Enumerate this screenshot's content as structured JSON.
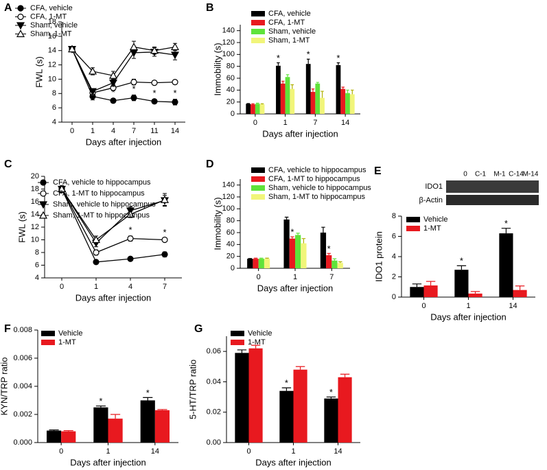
{
  "chart_data": [
    {
      "type": "line",
      "panel": "A",
      "ylabel": "FWL (s)",
      "xlabel": "Days after injection",
      "categories": [
        "0",
        "1",
        "4",
        "7",
        "11",
        "14"
      ],
      "ylim": [
        4,
        18
      ],
      "yticks": [
        4,
        6,
        8,
        10,
        12,
        14,
        16,
        18
      ],
      "legend": "upper left",
      "series": [
        {
          "name": "CFA, vehicle",
          "color": "#000000",
          "marker": "filled-circle",
          "values": [
            14.2,
            7.6,
            7.0,
            7.4,
            6.9,
            6.8
          ],
          "errors": [
            0.2,
            0.5,
            0.3,
            0.4,
            0.3,
            0.4
          ],
          "significance": [
            null,
            null,
            "*",
            "*",
            "*",
            "*"
          ]
        },
        {
          "name": "CFA, 1-MT",
          "color": "#000000",
          "marker": "open-circle",
          "values": [
            14.2,
            8.1,
            8.8,
            9.6,
            9.5,
            9.6
          ],
          "errors": [
            0.2,
            0.4,
            0.4,
            0.4,
            0.3,
            0.3
          ],
          "significance": null
        },
        {
          "name": "Sham, vehicle",
          "color": "#000000",
          "marker": "filled-triangle-down",
          "values": [
            14.2,
            8.3,
            9.5,
            13.7,
            13.8,
            13.4
          ],
          "errors": [
            0.2,
            0.4,
            0.5,
            0.8,
            0.6,
            0.7
          ],
          "significance": null
        },
        {
          "name": "Sham, 1-MT",
          "color": "#000000",
          "marker": "open-triangle-up",
          "values": [
            14.2,
            11.1,
            10.5,
            14.5,
            14.0,
            14.5
          ],
          "errors": [
            0.2,
            0.5,
            0.6,
            0.8,
            0.5,
            0.5
          ],
          "significance": null
        }
      ]
    },
    {
      "type": "bar",
      "panel": "B",
      "ylabel": "Immobility (s)",
      "xlabel": "Days after injection",
      "categories": [
        "0",
        "1",
        "7",
        "14"
      ],
      "ylim": [
        0,
        150
      ],
      "yticks": [
        0,
        20,
        40,
        60,
        80,
        100,
        120,
        140
      ],
      "legend": "upper left",
      "series": [
        {
          "name": "CFA, vehicle",
          "color": "#000000",
          "values": [
            17,
            81,
            84,
            82
          ],
          "errors": [
            0.5,
            5,
            8,
            4
          ],
          "significance": [
            null,
            "*",
            "*",
            "*"
          ]
        },
        {
          "name": "CFA, 1-MT",
          "color": "#e8191f",
          "values": [
            16,
            51,
            37,
            42
          ],
          "errors": [
            1,
            4,
            5,
            3
          ],
          "significance": null
        },
        {
          "name": "Sham, vehicle",
          "color": "#5fe33a",
          "values": [
            17,
            62,
            51,
            35
          ],
          "errors": [
            1,
            4,
            2,
            5
          ],
          "significance": null
        },
        {
          "name": "Sham, 1-MT",
          "color": "#f1f57a",
          "values": [
            16,
            42,
            27,
            33
          ],
          "errors": [
            1,
            7,
            11,
            7
          ],
          "significance": null
        }
      ]
    },
    {
      "type": "line",
      "panel": "C",
      "ylabel": "FWL (s)",
      "xlabel": "Days after injection",
      "categories": [
        "0",
        "1",
        "4",
        "7"
      ],
      "ylim": [
        4,
        20
      ],
      "yticks": [
        4,
        6,
        8,
        10,
        12,
        14,
        16,
        18,
        20
      ],
      "legend": "upper left",
      "series": [
        {
          "name": "CFA, vehicle to hippocampus",
          "color": "#000000",
          "marker": "filled-circle",
          "values": [
            18.0,
            6.5,
            7.0,
            7.7
          ],
          "errors": [
            0.5,
            0.3,
            0.2,
            0.4
          ],
          "significance": null
        },
        {
          "name": "CFA, 1-MT to hippocampus",
          "color": "#000000",
          "marker": "open-circle",
          "values": [
            18.0,
            8.0,
            10.2,
            10.0
          ],
          "errors": [
            0.5,
            0.4,
            0.4,
            0.2
          ],
          "significance": [
            null,
            null,
            "*",
            "*"
          ]
        },
        {
          "name": "Sham, vehicle to hippocampus",
          "color": "#000000",
          "marker": "filled-triangle-down",
          "values": [
            18.0,
            9.5,
            14.6,
            16.2
          ],
          "errors": [
            0.5,
            0.6,
            0.6,
            0.8
          ],
          "significance": null
        },
        {
          "name": "Sham, 1-MT to hippocampus",
          "color": "#000000",
          "marker": "open-triangle-up",
          "values": [
            18.0,
            10.0,
            14.0,
            16.3
          ],
          "errors": [
            0.5,
            0.6,
            0.5,
            1.0
          ],
          "significance": null
        }
      ]
    },
    {
      "type": "bar",
      "panel": "D",
      "ylabel": "Immobility (s)",
      "xlabel": "Days after injection",
      "categories": [
        "0",
        "1",
        "7"
      ],
      "ylim": [
        0,
        150
      ],
      "yticks": [
        0,
        20,
        40,
        60,
        80,
        100,
        120,
        140
      ],
      "legend": "upper left",
      "series": [
        {
          "name": "CFA, vehicle to hippocampus",
          "color": "#000000",
          "values": [
            16,
            82,
            60
          ],
          "errors": [
            0.5,
            4,
            9
          ],
          "significance": null
        },
        {
          "name": "CFA, 1-MT to hippocampus",
          "color": "#e8191f",
          "values": [
            16,
            50,
            22
          ],
          "errors": [
            1,
            3,
            3
          ],
          "significance": [
            null,
            "*",
            "*"
          ]
        },
        {
          "name": "Sham, vehicle to hippocampus",
          "color": "#5fe33a",
          "values": [
            16,
            56,
            13
          ],
          "errors": [
            1,
            3,
            3
          ],
          "significance": null
        },
        {
          "name": "Sham, 1-MT to hippocampus",
          "color": "#f1f57a",
          "values": [
            16,
            42,
            9
          ],
          "errors": [
            1,
            8,
            2
          ],
          "significance": null
        }
      ]
    },
    {
      "type": "bar",
      "panel": "E",
      "ylabel": "IDO1 protein",
      "xlabel": "Days after injection",
      "categories": [
        "0",
        "1",
        "14"
      ],
      "ylim": [
        0,
        8
      ],
      "yticks": [
        0,
        2,
        4,
        6,
        8
      ],
      "legend": "upper left",
      "blot": {
        "lanes": [
          "0",
          "C-1",
          "M-1",
          "C-14",
          "M-14"
        ],
        "rows": [
          "IDO1",
          "β-Actin"
        ]
      },
      "series": [
        {
          "name": "Vehicle",
          "color": "#000000",
          "values": [
            1.0,
            2.7,
            6.3
          ],
          "errors": [
            0.3,
            0.4,
            0.5
          ],
          "significance": [
            null,
            "*",
            "*"
          ]
        },
        {
          "name": "1-MT",
          "color": "#e8191f",
          "values": [
            1.15,
            0.35,
            0.7
          ],
          "errors": [
            0.4,
            0.2,
            0.4
          ],
          "significance": null
        }
      ]
    },
    {
      "type": "bar",
      "panel": "F",
      "ylabel": "KYN/TRP ratio",
      "xlabel": "Days after injection",
      "categories": [
        "0",
        "1",
        "14"
      ],
      "ylim": [
        0,
        0.008
      ],
      "yticks": [
        {
          "value": 0,
          "label": "0.000"
        },
        {
          "value": 0.002,
          "label": "0.002"
        },
        {
          "value": 0.004,
          "label": "0.004"
        },
        {
          "value": 0.006,
          "label": "0.006"
        },
        {
          "value": 0.008,
          "label": "0.008"
        }
      ],
      "legend": "upper left",
      "series": [
        {
          "name": "Vehicle",
          "color": "#000000",
          "values": [
            0.00085,
            0.0025,
            0.003
          ],
          "errors": [
            5e-05,
            0.0001,
            0.0002
          ],
          "significance": [
            null,
            "*",
            "*"
          ]
        },
        {
          "name": "1-MT",
          "color": "#e8191f",
          "values": [
            0.0008,
            0.0017,
            0.0023
          ],
          "errors": [
            5e-05,
            0.0003,
            5e-05
          ],
          "significance": null
        }
      ]
    },
    {
      "type": "bar",
      "panel": "G",
      "ylabel": "5-HT/TRP ratio",
      "xlabel": "Days after injection",
      "categories": [
        "0",
        "1",
        "14"
      ],
      "ylim": [
        0,
        0.07
      ],
      "yticks": [
        {
          "value": 0,
          "label": "0.00"
        },
        {
          "value": 0.02,
          "label": "0.02"
        },
        {
          "value": 0.04,
          "label": "0.04"
        },
        {
          "value": 0.06,
          "label": "0.06"
        }
      ],
      "legend": "upper left",
      "series": [
        {
          "name": "Vehicle",
          "color": "#000000",
          "values": [
            0.059,
            0.034,
            0.029
          ],
          "errors": [
            0.002,
            0.002,
            0.001
          ],
          "significance": [
            null,
            "*",
            "*"
          ]
        },
        {
          "name": "1-MT",
          "color": "#e8191f",
          "values": [
            0.062,
            0.048,
            0.043
          ],
          "errors": [
            0.002,
            0.002,
            0.002
          ],
          "significance": null
        }
      ]
    }
  ]
}
